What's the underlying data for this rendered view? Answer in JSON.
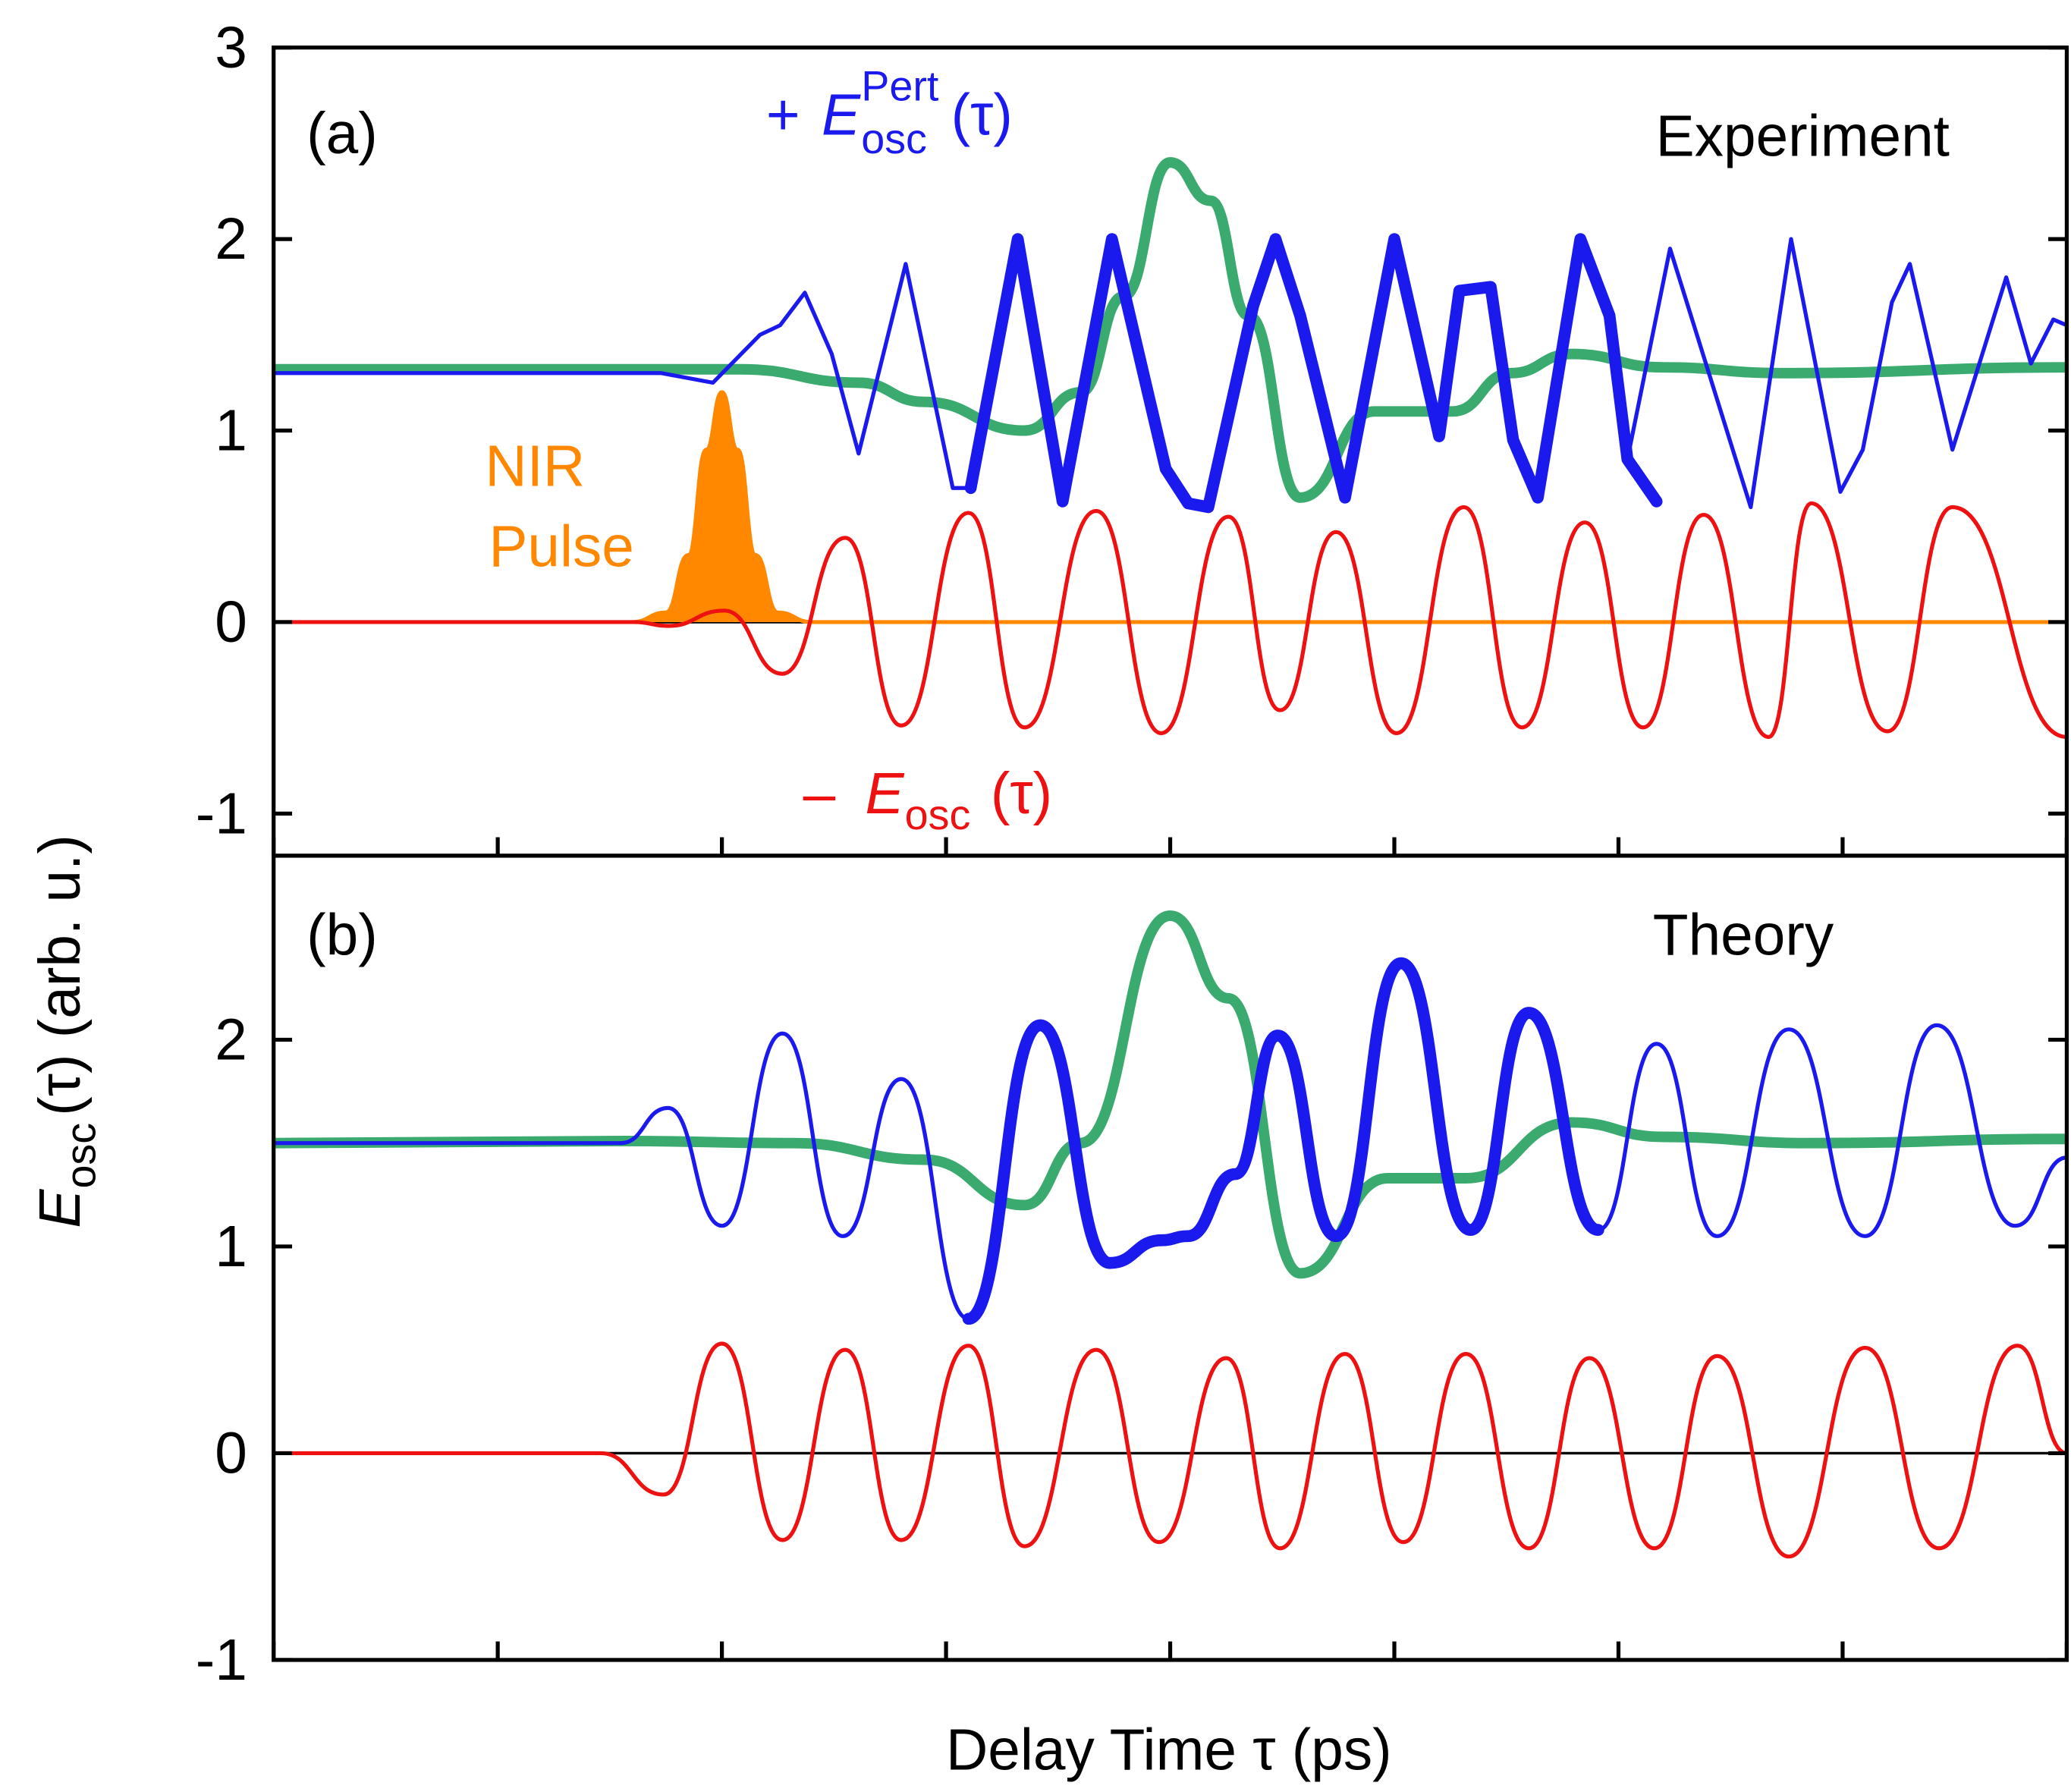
{
  "chart_data": [
    {
      "type": "line",
      "label": "(a)",
      "title": "Experiment",
      "ylabel": {
        "symbol": "E",
        "sub": "osc",
        "rest": "(τ) (arb. u.)"
      },
      "annotations": {
        "pulse": {
          "line1": "NIR",
          "line2": "Pulse",
          "color": "#ff8800"
        },
        "plus": {
          "sign": "+",
          "symbol": "E",
          "sub": "osc",
          "sup": "Pert",
          "arg": "(τ)",
          "color": "#1a1aee"
        },
        "minus": {
          "sign": "–",
          "symbol": "E",
          "sub": "osc",
          "arg": "(τ)",
          "color": "#ee1111"
        }
      },
      "xlim": [
        0,
        8
      ],
      "xticks": [
        0,
        1,
        2,
        3,
        4,
        5,
        6,
        7,
        8
      ],
      "ylim": [
        -1.22,
        3
      ],
      "yticks": [
        -1,
        0,
        1,
        2,
        3
      ],
      "series": [
        {
          "color": "#ff8800",
          "linewidth": 3,
          "smooth": true,
          "fill": true,
          "x": [
            1.6,
            1.75,
            1.85,
            1.93,
            2.0,
            2.07,
            2.15,
            2.25,
            2.4,
            8
          ],
          "values": [
            0,
            0.05,
            0.35,
            0.9,
            1.2,
            0.9,
            0.35,
            0.05,
            0,
            0
          ]
        },
        {
          "color": "#ee1111",
          "linewidth": 3,
          "smooth": true,
          "x": [
            0,
            1.61,
            1.76,
            2.01,
            2.27,
            2.55,
            2.8,
            3.1,
            3.35,
            3.67,
            3.96,
            4.26,
            4.49,
            4.74,
            5.01,
            5.31,
            5.57,
            5.85,
            6.11,
            6.38,
            6.67,
            6.86,
            7.2,
            7.49,
            8
          ],
          "values": [
            0,
            0,
            -0.02,
            0.06,
            -0.27,
            0.44,
            -0.54,
            0.57,
            -0.55,
            0.58,
            -0.58,
            0.55,
            -0.46,
            0.47,
            -0.58,
            0.6,
            -0.55,
            0.52,
            -0.55,
            0.56,
            -0.6,
            0.62,
            -0.57,
            0.6,
            -0.6
          ]
        },
        {
          "color": "#3aaa6e",
          "linewidth": 8,
          "smooth": true,
          "x": [
            0,
            2.08,
            2.61,
            2.9,
            3.35,
            3.6,
            3.79,
            4.0,
            4.18,
            4.35,
            4.58,
            4.91,
            5.26,
            5.52,
            5.79,
            6.2,
            6.73,
            8
          ],
          "values": [
            1.32,
            1.32,
            1.25,
            1.15,
            1.0,
            1.2,
            1.7,
            2.4,
            2.2,
            1.6,
            0.65,
            1.1,
            1.1,
            1.3,
            1.4,
            1.33,
            1.3,
            1.33
          ]
        },
        {
          "color": "#1a1aee",
          "linewidth": 3,
          "smooth": false,
          "x": [
            0,
            1.73,
            1.96,
            2.17,
            2.26,
            2.37,
            2.49,
            2.61,
            2.82,
            3.03,
            3.11,
            3.32,
            3.52,
            3.74,
            3.98,
            4.08,
            4.17,
            4.37,
            4.47,
            4.58,
            4.78,
            5.0,
            5.2,
            5.29,
            5.43,
            5.53,
            5.64,
            5.83,
            5.96,
            6.04,
            6.23,
            6.59,
            6.77,
            6.99,
            7.09,
            7.22,
            7.3,
            7.49,
            7.73,
            7.84,
            7.94,
            8
          ],
          "values": [
            1.3,
            1.3,
            1.25,
            1.5,
            1.55,
            1.72,
            1.4,
            0.88,
            1.87,
            0.7,
            0.7,
            2.0,
            0.63,
            2.0,
            0.8,
            0.62,
            0.6,
            1.65,
            2.0,
            1.6,
            0.65,
            2.0,
            0.97,
            1.73,
            1.75,
            0.95,
            0.65,
            2.0,
            1.6,
            0.85,
            1.95,
            0.6,
            2.0,
            0.68,
            0.9,
            1.67,
            1.87,
            0.9,
            1.8,
            1.35,
            1.58,
            1.55
          ]
        },
        {
          "color": "#1a1aee",
          "linewidth": 9,
          "smooth": false,
          "x": [
            3.11,
            3.32,
            3.52,
            3.74,
            3.98,
            4.08,
            4.17,
            4.37,
            4.47,
            4.58,
            4.78,
            5.0,
            5.2,
            5.29,
            5.43,
            5.53,
            5.64,
            5.83,
            5.96,
            6.04,
            6.17
          ],
          "values": [
            0.7,
            2.0,
            0.63,
            2.0,
            0.8,
            0.62,
            0.6,
            1.65,
            2.0,
            1.6,
            0.65,
            2.0,
            0.97,
            1.73,
            1.75,
            0.95,
            0.65,
            2.0,
            1.6,
            0.85,
            0.63
          ]
        }
      ]
    },
    {
      "type": "line",
      "label": "(b)",
      "title": "Theory",
      "xlabel": "Delay Time τ (ps)",
      "xlim": [
        0,
        8
      ],
      "xticks": [
        0,
        1,
        2,
        3,
        4,
        5,
        6,
        7,
        8
      ],
      "ylim": [
        -1,
        2.89
      ],
      "yticks": [
        -1,
        0,
        1,
        2
      ],
      "series": [
        {
          "color": "#ee1111",
          "linewidth": 3,
          "smooth": true,
          "x": [
            0,
            1.46,
            1.74,
            2.0,
            2.27,
            2.55,
            2.8,
            3.1,
            3.35,
            3.67,
            3.95,
            4.25,
            4.49,
            4.78,
            5.04,
            5.32,
            5.6,
            5.87,
            6.16,
            6.44,
            6.76,
            7.1,
            7.43,
            7.78,
            8
          ],
          "values": [
            0,
            0,
            -0.2,
            0.53,
            -0.42,
            0.5,
            -0.42,
            0.52,
            -0.45,
            0.5,
            -0.43,
            0.46,
            -0.46,
            0.48,
            -0.43,
            0.48,
            -0.46,
            0.46,
            -0.46,
            0.47,
            -0.5,
            0.51,
            -0.46,
            0.52,
            0
          ]
        },
        {
          "color": "#3aaa6e",
          "linewidth": 8,
          "smooth": true,
          "x": [
            0,
            1.55,
            2.32,
            2.9,
            3.35,
            3.6,
            4.0,
            4.26,
            4.58,
            4.97,
            5.32,
            5.79,
            6.2,
            6.85,
            8
          ],
          "values": [
            1.5,
            1.51,
            1.5,
            1.42,
            1.2,
            1.5,
            2.6,
            2.2,
            0.87,
            1.33,
            1.33,
            1.6,
            1.53,
            1.5,
            1.52
          ]
        },
        {
          "color": "#1a1aee",
          "linewidth": 3,
          "smooth": true,
          "x": [
            0,
            1.55,
            1.76,
            2.0,
            2.27,
            2.54,
            2.8,
            3.1,
            3.42,
            3.73,
            3.96,
            4.08,
            4.29,
            4.48,
            4.74,
            5.03,
            5.34,
            5.6,
            5.91,
            6.17,
            6.44,
            6.76,
            7.1,
            7.42,
            7.77,
            8
          ],
          "values": [
            1.5,
            1.5,
            1.67,
            1.1,
            2.03,
            1.05,
            1.81,
            0.65,
            2.07,
            0.92,
            1.03,
            1.05,
            1.35,
            2.02,
            1.05,
            2.37,
            1.08,
            2.13,
            1.08,
            1.98,
            1.05,
            2.05,
            1.05,
            2.07,
            1.1,
            1.43
          ]
        },
        {
          "color": "#1a1aee",
          "linewidth": 9,
          "smooth": true,
          "x": [
            3.1,
            3.42,
            3.73,
            3.96,
            4.08,
            4.29,
            4.48,
            4.74,
            5.03,
            5.34,
            5.6,
            5.91
          ],
          "values": [
            0.65,
            2.07,
            0.92,
            1.03,
            1.05,
            1.35,
            2.02,
            1.05,
            2.37,
            1.08,
            2.13,
            1.08
          ]
        }
      ]
    }
  ]
}
